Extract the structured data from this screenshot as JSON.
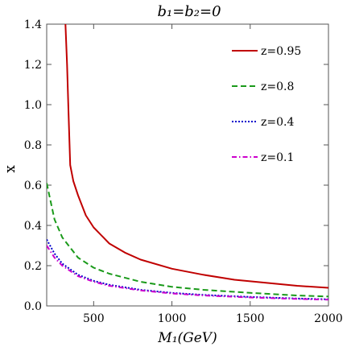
{
  "chart_data": {
    "type": "line",
    "title": "b₁=b₂=0",
    "xlabel": "M₁(GeV)",
    "ylabel": "x",
    "xlim": [
      200,
      2000
    ],
    "ylim": [
      0,
      1.4
    ],
    "xticks": [
      500,
      1000,
      1500,
      2000
    ],
    "yticks": [
      0.0,
      0.2,
      0.4,
      0.6,
      0.8,
      1.0,
      1.2,
      1.4
    ],
    "grid": false,
    "legend_position": "top-right",
    "series": [
      {
        "name": "z=0.95",
        "color": "#c00000",
        "dash": "solid",
        "points": [
          [
            320,
            1.4
          ],
          [
            330,
            1.2
          ],
          [
            340,
            0.95
          ],
          [
            350,
            0.7
          ],
          [
            370,
            0.62
          ],
          [
            400,
            0.55
          ],
          [
            450,
            0.45
          ],
          [
            500,
            0.39
          ],
          [
            600,
            0.31
          ],
          [
            700,
            0.265
          ],
          [
            800,
            0.23
          ],
          [
            1000,
            0.185
          ],
          [
            1200,
            0.155
          ],
          [
            1400,
            0.13
          ],
          [
            1600,
            0.115
          ],
          [
            1800,
            0.1
          ],
          [
            2000,
            0.09
          ]
        ]
      },
      {
        "name": "z=0.8",
        "color": "#1a9a1a",
        "dash": "dashed",
        "points": [
          [
            200,
            0.61
          ],
          [
            250,
            0.43
          ],
          [
            300,
            0.34
          ],
          [
            400,
            0.24
          ],
          [
            500,
            0.19
          ],
          [
            600,
            0.16
          ],
          [
            800,
            0.12
          ],
          [
            1000,
            0.095
          ],
          [
            1200,
            0.08
          ],
          [
            1500,
            0.065
          ],
          [
            1800,
            0.052
          ],
          [
            2000,
            0.047
          ]
        ]
      },
      {
        "name": "z=0.4",
        "color": "#0000cc",
        "dash": "dotted",
        "points": [
          [
            200,
            0.33
          ],
          [
            250,
            0.26
          ],
          [
            300,
            0.21
          ],
          [
            400,
            0.155
          ],
          [
            500,
            0.125
          ],
          [
            600,
            0.105
          ],
          [
            800,
            0.08
          ],
          [
            1000,
            0.065
          ],
          [
            1200,
            0.055
          ],
          [
            1500,
            0.045
          ],
          [
            1800,
            0.037
          ],
          [
            2000,
            0.033
          ]
        ]
      },
      {
        "name": "z=0.1",
        "color": "#cc00cc",
        "dash": "dashdot",
        "points": [
          [
            200,
            0.3
          ],
          [
            250,
            0.24
          ],
          [
            300,
            0.2
          ],
          [
            400,
            0.148
          ],
          [
            500,
            0.12
          ],
          [
            600,
            0.1
          ],
          [
            800,
            0.077
          ],
          [
            1000,
            0.062
          ],
          [
            1200,
            0.052
          ],
          [
            1500,
            0.042
          ],
          [
            1800,
            0.035
          ],
          [
            2000,
            0.031
          ]
        ]
      }
    ]
  }
}
